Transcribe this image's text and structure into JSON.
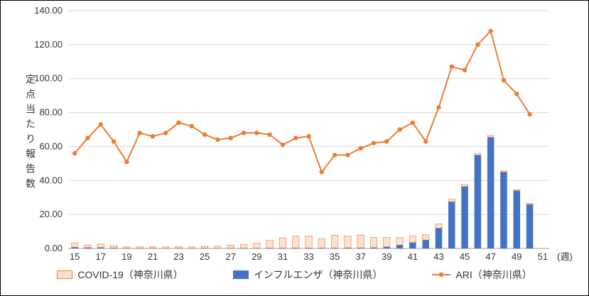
{
  "chart_data": {
    "type": "bar+line",
    "title": "",
    "ylabel": "定点当たり報告数",
    "xlabel": "(週)",
    "ylim": [
      0,
      140
    ],
    "ytick_step": 20,
    "ytick_decimals": 2,
    "x_domain": [
      15,
      51
    ],
    "x_ticks": [
      15,
      17,
      19,
      21,
      23,
      25,
      27,
      29,
      31,
      33,
      35,
      37,
      39,
      41,
      43,
      45,
      47,
      49,
      51
    ],
    "weeks": [
      15,
      16,
      17,
      18,
      19,
      20,
      21,
      22,
      23,
      24,
      25,
      26,
      27,
      28,
      29,
      30,
      31,
      32,
      33,
      34,
      35,
      36,
      37,
      38,
      39,
      40,
      41,
      42,
      43,
      44,
      45,
      46,
      47,
      48,
      49,
      50
    ],
    "grid": true,
    "legend_position": "bottom",
    "series": [
      {
        "name": "COVID-19（神奈川県）",
        "type": "bar",
        "stack": "total",
        "color": "#ED7D31",
        "fill_style": "dot-pattern",
        "values": [
          2.5,
          1.5,
          2.0,
          1.2,
          0.8,
          0.8,
          0.8,
          0.8,
          0.8,
          0.8,
          1.0,
          1.2,
          1.8,
          2.2,
          3.0,
          4.5,
          6.0,
          7.0,
          7.0,
          5.5,
          7.5,
          7.0,
          7.5,
          6.0,
          5.5,
          4.5,
          4.0,
          3.0,
          2.5,
          1.5,
          1.2,
          1.0,
          1.0,
          0.8,
          0.6,
          0.5
        ]
      },
      {
        "name": "インフルエンザ（神奈川県）",
        "type": "bar",
        "stack": "total",
        "color": "#4472C4",
        "fill_style": "solid",
        "values": [
          0.8,
          0.5,
          0.6,
          0.3,
          0.2,
          0.2,
          0.2,
          0.2,
          0.2,
          0.2,
          0.2,
          0.2,
          0.2,
          0.2,
          0.2,
          0.3,
          0.3,
          0.3,
          0.3,
          0.3,
          0.3,
          0.4,
          0.4,
          0.5,
          1.0,
          2.0,
          3.5,
          5.0,
          12.0,
          27.5,
          36.5,
          55.0,
          65.5,
          45.0,
          34.0,
          26.0
        ]
      },
      {
        "name": "ARI（神奈川県）",
        "type": "line",
        "color": "#ED7D31",
        "marker": "circle",
        "values": [
          56,
          65,
          73,
          63,
          51,
          68,
          66,
          68,
          74,
          72,
          67,
          64,
          65,
          68,
          68,
          67,
          61,
          65,
          66,
          45,
          55,
          55,
          59,
          62,
          63,
          70,
          74,
          63,
          83,
          107,
          105,
          120,
          128,
          99,
          91,
          79
        ]
      }
    ],
    "axis_colors": {
      "gridline": "#d9d9d9",
      "axis_line": "#9e9e9e",
      "tick_text": "#333333"
    }
  }
}
